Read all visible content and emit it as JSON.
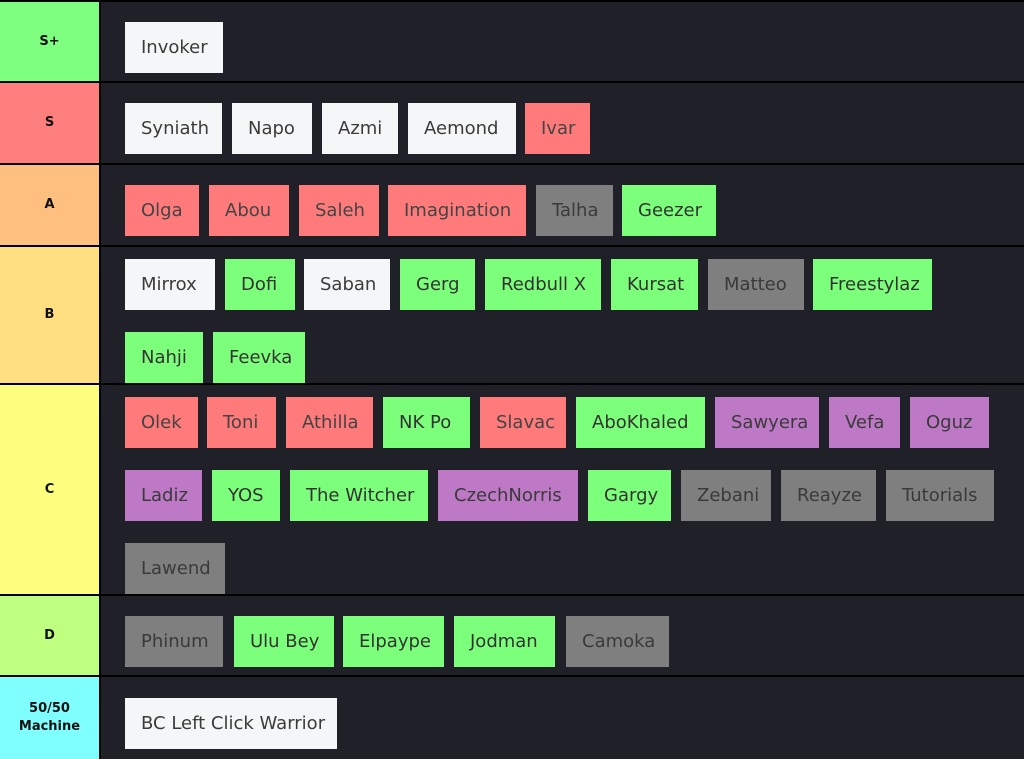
{
  "tiers": [
    {
      "label": "S+",
      "color": "#7fff7f",
      "items": [
        {
          "name": "Invoker",
          "color": "white"
        }
      ]
    },
    {
      "label": "S",
      "color": "#ff7f7f",
      "items": [
        {
          "name": "Syniath",
          "color": "white"
        },
        {
          "name": "Napo",
          "color": "white"
        },
        {
          "name": "Azmi",
          "color": "white"
        },
        {
          "name": "Aemond",
          "color": "white"
        },
        {
          "name": "Ivar",
          "color": "red"
        }
      ]
    },
    {
      "label": "A",
      "color": "#ffbf7f",
      "items": [
        {
          "name": "Olga",
          "color": "red"
        },
        {
          "name": "Abou",
          "color": "red"
        },
        {
          "name": "Saleh",
          "color": "red"
        },
        {
          "name": "Imagination",
          "color": "red"
        },
        {
          "name": "Talha",
          "color": "gray"
        },
        {
          "name": "Geezer",
          "color": "green"
        }
      ]
    },
    {
      "label": "B",
      "color": "#ffdf7f",
      "items": [
        {
          "name": "Mirrox",
          "color": "white"
        },
        {
          "name": "Dofi",
          "color": "green"
        },
        {
          "name": "Saban",
          "color": "white"
        },
        {
          "name": "Gerg",
          "color": "green"
        },
        {
          "name": "Redbull X",
          "color": "green"
        },
        {
          "name": "Kursat",
          "color": "green"
        },
        {
          "name": "Matteo",
          "color": "gray"
        },
        {
          "name": "Freestylaz",
          "color": "green"
        },
        {
          "name": "Nahji",
          "color": "green"
        },
        {
          "name": "Feevka",
          "color": "green"
        }
      ]
    },
    {
      "label": "C",
      "color": "#ffff7f",
      "items": [
        {
          "name": "Olek",
          "color": "red"
        },
        {
          "name": "Toni",
          "color": "red"
        },
        {
          "name": "Athilla",
          "color": "red"
        },
        {
          "name": "NK Po",
          "color": "green"
        },
        {
          "name": "Slavac",
          "color": "red"
        },
        {
          "name": "AboKhaled",
          "color": "green"
        },
        {
          "name": "Sawyera",
          "color": "purple"
        },
        {
          "name": "Vefa",
          "color": "purple"
        },
        {
          "name": "Oguz",
          "color": "purple"
        },
        {
          "name": "Ladiz",
          "color": "purple"
        },
        {
          "name": "YOS",
          "color": "green"
        },
        {
          "name": "The Witcher",
          "color": "green"
        },
        {
          "name": "CzechNorris",
          "color": "purple"
        },
        {
          "name": "Gargy",
          "color": "green"
        },
        {
          "name": "Zebani",
          "color": "gray"
        },
        {
          "name": "Reayze",
          "color": "gray"
        },
        {
          "name": "Tutorials",
          "color": "gray"
        },
        {
          "name": "Lawend",
          "color": "gray"
        }
      ]
    },
    {
      "label": "D",
      "color": "#bfff7f",
      "items": [
        {
          "name": "Phinum",
          "color": "gray"
        },
        {
          "name": "Ulu Bey",
          "color": "green"
        },
        {
          "name": "Elpaype",
          "color": "green"
        },
        {
          "name": "Jodman",
          "color": "green"
        },
        {
          "name": "Camoka",
          "color": "gray"
        }
      ]
    },
    {
      "label": "50/50 Machine",
      "color": "#7fffff",
      "items": [
        {
          "name": "BC Left Click Warrior",
          "color": "white"
        }
      ]
    }
  ]
}
